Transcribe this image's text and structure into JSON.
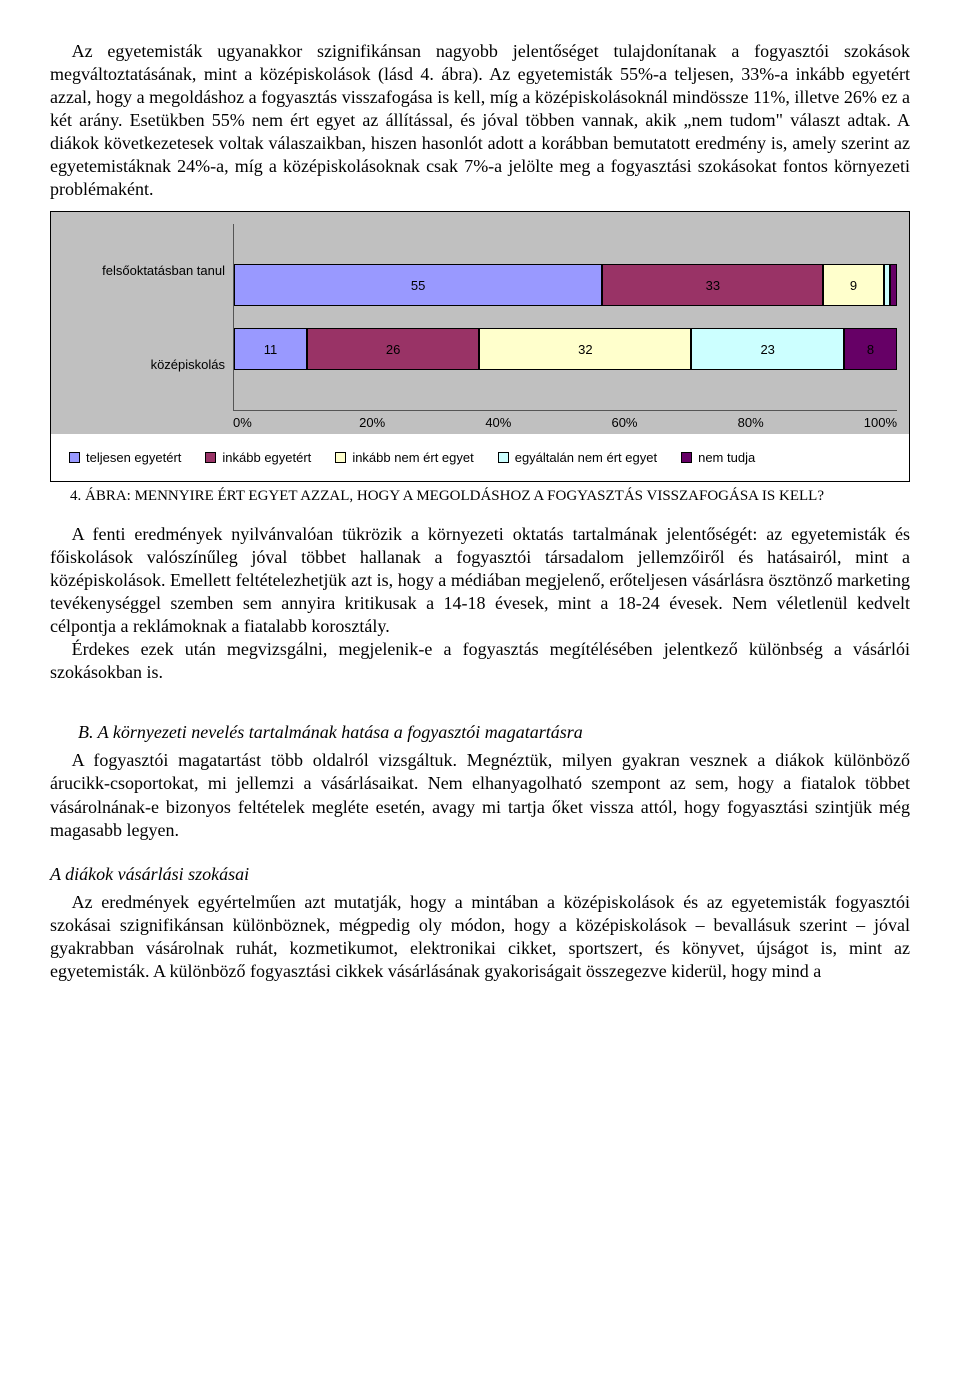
{
  "paragraphs": {
    "p1": "Az egyetemisták ugyanakkor szignifikánsan nagyobb jelentőséget tulajdonítanak a fogyasztói szokások megváltoztatásának, mint a középiskolások (lásd 4. ábra). Az egyetemisták 55%-a teljesen, 33%-a inkább egyetért azzal, hogy a megoldáshoz a fogyasztás visszafogása is kell, míg a középiskolásoknál mindössze 11%, illetve 26% ez a két arány. Esetükben 55% nem ért egyet az állítással, és jóval többen vannak, akik „nem tudom\" választ adtak. A diákok következetesek voltak válaszaikban, hiszen hasonlót adott a korábban bemutatott eredmény is, amely szerint az egyetemistáknak 24%-a, míg a középiskolásoknak csak 7%-a jelölte meg a fogyasztási szokásokat fontos környezeti problémaként.",
    "p2": "A fenti eredmények nyilvánvalóan tükrözik a környezeti oktatás tartalmának jelentőségét: az egyetemisták és főiskolások valószínűleg jóval többet hallanak a fogyasztói társadalom jellemzőiről és hatásairól, mint a középiskolások. Emellett feltételezhetjük azt is, hogy a médiában megjelenő, erőteljesen vásárlásra ösztönző marketing tevékenységgel szemben sem annyira kritikusak a 14-18 évesek, mint a 18-24 évesek. Nem véletlenül kedvelt célpontja a reklámoknak a fiatalabb korosztály.",
    "p3": "Érdekes ezek után megvizsgálni, megjelenik-e a fogyasztás megítélésében jelentkező különbség a vásárlói szokásokban is.",
    "p4": "A fogyasztói magatartást több oldalról vizsgáltuk. Megnéztük, milyen gyakran vesznek a diákok különböző árucikk-csoportokat, mi jellemzi a vásárlásaikat. Nem elhanyagolható szempont az sem, hogy a fiatalok többet vásárolnának-e bizonyos feltételek megléte esetén, avagy mi tartja őket vissza attól, hogy fogyasztási szintjük még magasabb legyen.",
    "p5": "Az eredmények egyértelműen azt mutatják, hogy a mintában a középiskolások és az egyetemisták fogyasztói szokásai szignifikánsan különböznek, mégpedig oly módon, hogy a középiskolások – bevallásuk szerint – jóval gyakrabban vásárolnak ruhát, kozmetikumot, elektronikai cikket, sportszert, és könyvet, újságot is, mint az egyetemisták. A különböző fogyasztási cikkek vásárlásának gyakoriságait összegezve kiderül, hogy mind a"
  },
  "chart": {
    "type": "stacked_bar_horizontal",
    "background_color": "#c0c0c0",
    "categories": [
      "felsőoktatásban tanul",
      "középiskolás"
    ],
    "series": [
      {
        "label": "teljesen egyetért",
        "color": "#9999ff"
      },
      {
        "label": "inkább egyetért",
        "color": "#993366"
      },
      {
        "label": "inkább nem ért egyet",
        "color": "#ffffcc"
      },
      {
        "label": "egyáltalán nem ért egyet",
        "color": "#ccffff"
      },
      {
        "label": "nem tudja",
        "color": "#660066"
      }
    ],
    "rows": [
      {
        "label": "felsőoktatásban tanul",
        "values": [
          55,
          33,
          9,
          1,
          1
        ]
      },
      {
        "label": "középiskolás",
        "values": [
          11,
          26,
          32,
          23,
          8
        ]
      }
    ],
    "x_ticks": [
      "0%",
      "20%",
      "40%",
      "60%",
      "80%",
      "100%"
    ],
    "label_font": "Arial",
    "label_fontsize": 13,
    "bar_border": "#000000",
    "value_text_color": "#000000"
  },
  "caption": {
    "num": "4. ",
    "text": "ÁBRA: MENNYIRE ÉRT EGYET AZZAL, HOGY A MEGOLDÁSHOZ A FOGYASZTÁS VISSZAFOGÁSA IS KELL?"
  },
  "section_b": "B.   A környezeti nevelés tartalmának hatása a fogyasztói magatartásra",
  "subheading": "A diákok vásárlási szokásai"
}
